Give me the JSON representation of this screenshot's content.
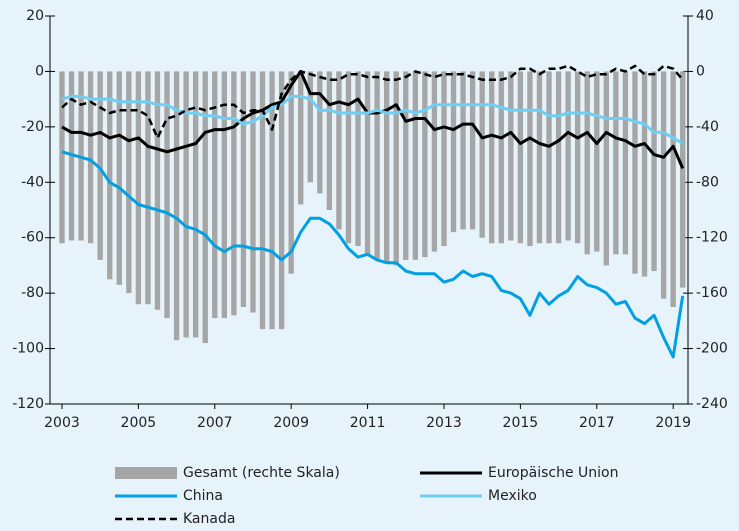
{
  "chart_data": {
    "type": "line",
    "categories": [
      "2003",
      null,
      null,
      null,
      null,
      null,
      null,
      null,
      "2005",
      null,
      null,
      null,
      null,
      null,
      null,
      null,
      "2007",
      null,
      null,
      null,
      null,
      null,
      null,
      null,
      "2009",
      null,
      null,
      null,
      null,
      null,
      null,
      null,
      "2011",
      null,
      null,
      null,
      null,
      null,
      null,
      null,
      "2013",
      null,
      null,
      null,
      null,
      null,
      null,
      null,
      "2015",
      null,
      null,
      null,
      null,
      null,
      null,
      null,
      "2017",
      null,
      null,
      null,
      null,
      null,
      null,
      null,
      "2019",
      null
    ],
    "ylim": [
      -120,
      20
    ],
    "yticks": [
      20,
      0,
      -20,
      -40,
      -60,
      -80,
      -100,
      -120
    ],
    "y2lim": [
      -240,
      40
    ],
    "y2ticks": [
      40,
      0,
      -40,
      -80,
      -120,
      -160,
      -200,
      -240
    ],
    "series": [
      {
        "name": "Gesamt (rechte Skala)",
        "type": "bar",
        "axis": "y2",
        "color": "#a6a6a6",
        "values": [
          -124,
          -122,
          -122,
          -124,
          -136,
          -150,
          -154,
          -160,
          -168,
          -168,
          -172,
          -178,
          -194,
          -192,
          -192,
          -196,
          -178,
          -178,
          -176,
          -170,
          -174,
          -186,
          -186,
          -186,
          -146,
          -96,
          -80,
          -88,
          -100,
          -114,
          -124,
          -126,
          -132,
          -136,
          -138,
          -140,
          -136,
          -136,
          -134,
          -130,
          -126,
          -116,
          -114,
          -114,
          -120,
          -124,
          -124,
          -122,
          -124,
          -126,
          -124,
          -124,
          -124,
          -122,
          -124,
          -132,
          -130,
          -140,
          -132,
          -132,
          -146,
          -148,
          -144,
          -164,
          -170,
          -156
        ]
      },
      {
        "name": "Europäische Union",
        "type": "line",
        "color": "#000000",
        "values": [
          -20,
          -22,
          -22,
          -23,
          -22,
          -24,
          -23,
          -25,
          -24,
          -27,
          -28,
          -29,
          -28,
          -27,
          -26,
          -22,
          -21,
          -21,
          -20,
          -17,
          -15,
          -14,
          -12,
          -11,
          -5,
          0,
          -8,
          -8,
          -12,
          -11,
          -12,
          -10,
          -15,
          -15,
          -14,
          -12,
          -18,
          -17,
          -17,
          -21,
          -20,
          -21,
          -19,
          -19,
          -24,
          -23,
          -24,
          -22,
          -26,
          -24,
          -26,
          -27,
          -25,
          -22,
          -24,
          -22,
          -26,
          -22,
          -24,
          -25,
          -27,
          -26,
          -30,
          -31,
          -27,
          -35
        ]
      },
      {
        "name": "China",
        "type": "line",
        "color": "#00a0e3",
        "values": [
          -29,
          -30,
          -31,
          -32,
          -35,
          -40,
          -42,
          -45,
          -48,
          -49,
          -50,
          -51,
          -53,
          -56,
          -57,
          -59,
          -63,
          -65,
          -63,
          -63,
          -64,
          -64,
          -65,
          -68,
          -65,
          -58,
          -53,
          -53,
          -55,
          -59,
          -64,
          -67,
          -66,
          -68,
          -69,
          -69,
          -72,
          -73,
          -73,
          -73,
          -76,
          -75,
          -72,
          -74,
          -73,
          -74,
          -79,
          -80,
          -82,
          -88,
          -80,
          -84,
          -81,
          -79,
          -74,
          -77,
          -78,
          -80,
          -84,
          -83,
          -89,
          -91,
          -88,
          -96,
          -103,
          -81
        ]
      },
      {
        "name": "Mexiko",
        "type": "line",
        "color": "#6ecff6",
        "values": [
          -10,
          -9,
          -9,
          -10,
          -10,
          -10,
          -11,
          -11,
          -11,
          -11,
          -12,
          -12,
          -14,
          -15,
          -15,
          -16,
          -16,
          -17,
          -17,
          -19,
          -18,
          -16,
          -13,
          -12,
          -9,
          -9,
          -10,
          -14,
          -14,
          -15,
          -15,
          -15,
          -15,
          -14,
          -15,
          -15,
          -14,
          -15,
          -14,
          -12,
          -12,
          -12,
          -12,
          -12,
          -12,
          -12,
          -13,
          -14,
          -14,
          -14,
          -14,
          -16,
          -16,
          -15,
          -15,
          -15,
          -16,
          -17,
          -17,
          -17,
          -18,
          -19,
          -22,
          -22,
          -24,
          -26
        ]
      },
      {
        "name": "Kanada",
        "type": "line",
        "dashed": true,
        "color": "#000000",
        "values": [
          -13,
          -10,
          -12,
          -11,
          -13,
          -15,
          -14,
          -14,
          -14,
          -16,
          -24,
          -17,
          -16,
          -14,
          -13,
          -14,
          -13,
          -12,
          -12,
          -15,
          -14,
          -14,
          -21,
          -8,
          -3,
          0,
          -1,
          -2,
          -3,
          -3,
          -1,
          -1,
          -2,
          -2,
          -3,
          -3,
          -2,
          0,
          -1,
          -2,
          -1,
          -1,
          -1,
          -2,
          -3,
          -3,
          -3,
          -2,
          1,
          1,
          -1,
          1,
          1,
          2,
          0,
          -2,
          -1,
          -1,
          1,
          0,
          2,
          -1,
          -1,
          2,
          1,
          -3
        ]
      }
    ]
  }
}
